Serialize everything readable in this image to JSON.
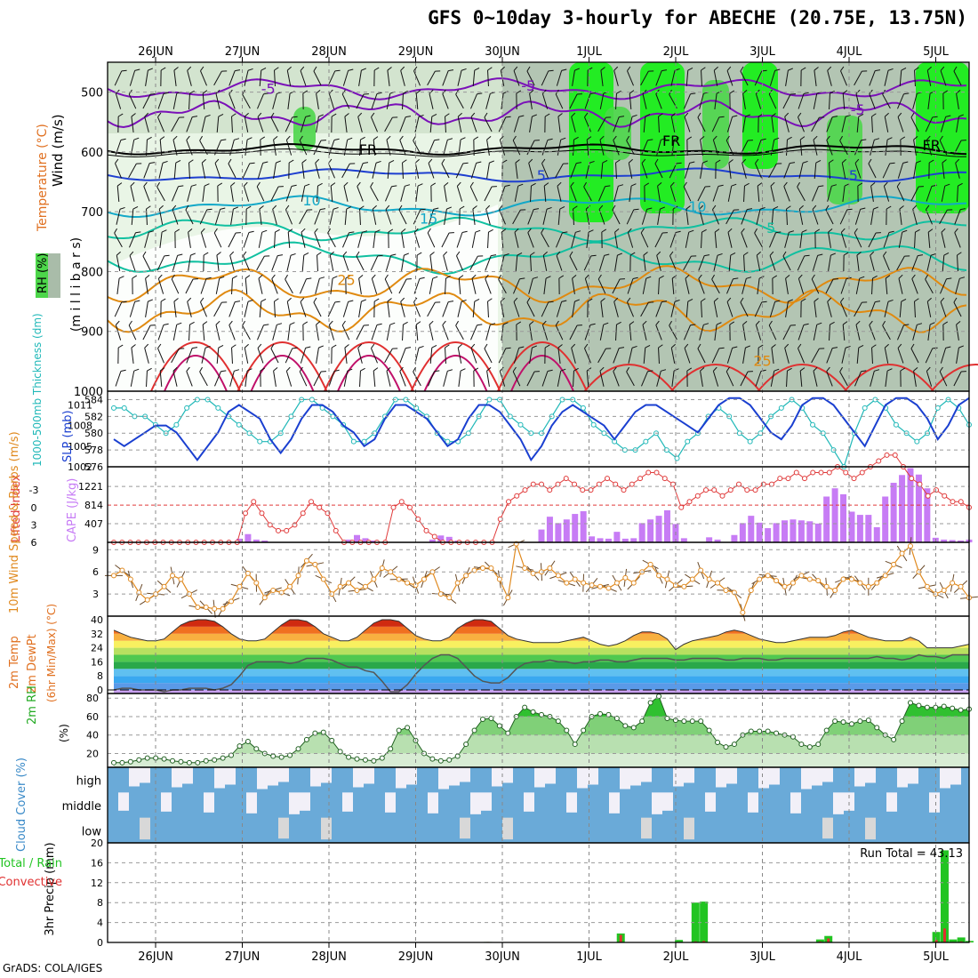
{
  "title": "GFS 0~10day 3-hourly for ABECHE (20.75E, 13.75N)",
  "credit": "GrADS: COLA/IGES",
  "dates": [
    "26JUN",
    "27JUN",
    "28JUN",
    "29JUN",
    "30JUN",
    "1JUL",
    "2JUL",
    "3JUL",
    "4JUL",
    "5JUL"
  ],
  "colors": {
    "rh_light": "#e9f5e6",
    "rh_mid": "#c4d8c0",
    "rh_dark": "#a9bca9",
    "rh_green": "#4dd64a",
    "rh_bright": "#13f013",
    "purple": "#7a10b8",
    "blue": "#1e3fd0",
    "cyan": "#12a8c8",
    "teal": "#10c0a0",
    "orange": "#e08a10",
    "red": "#e03030",
    "slp": "#1a3fd0",
    "thickness": "#20b8b8",
    "cape": "#c77cf5",
    "lifted": "#e03a3a",
    "wind": "#e08a20",
    "cloud": "#6aaad8",
    "cloud_clear": "#f2f0f8",
    "precip_total": "#22c422",
    "precip_conv": "#e03030"
  },
  "chart_data": [
    {
      "type": "heatmap",
      "ylabel": "Wind (m/s)",
      "ylabel2": "Temperature (°C)",
      "ylabel3": "(m i l l i b a r s)",
      "legend_label": "RH (%)",
      "yticks": [
        500,
        600,
        700,
        800,
        900,
        1000
      ],
      "ylim": [
        450,
        1000
      ],
      "contour_labels": [
        {
          "text": "-5",
          "x": 1.3,
          "y": 495,
          "color": "purple"
        },
        {
          "text": "-5",
          "x": 4.3,
          "y": 490,
          "color": "purple"
        },
        {
          "text": "-5",
          "x": 8.1,
          "y": 530,
          "color": "purple"
        },
        {
          "text": "FR",
          "x": 2.45,
          "y": 597,
          "color": "black"
        },
        {
          "text": "FR",
          "x": 5.95,
          "y": 582,
          "color": "black"
        },
        {
          "text": "FR",
          "x": 8.95,
          "y": 590,
          "color": "black"
        },
        {
          "text": "5",
          "x": 4.45,
          "y": 640,
          "color": "blue"
        },
        {
          "text": "5",
          "x": 8.05,
          "y": 640,
          "color": "blue"
        },
        {
          "text": "10",
          "x": 1.8,
          "y": 682,
          "color": "cyan"
        },
        {
          "text": "10",
          "x": 6.25,
          "y": 692,
          "color": "cyan"
        },
        {
          "text": "15",
          "x": 3.15,
          "y": 712,
          "color": "cyan"
        },
        {
          "text": "5",
          "x": 7.1,
          "y": 728,
          "color": "teal"
        },
        {
          "text": "25",
          "x": 2.2,
          "y": 815,
          "color": "orange"
        },
        {
          "text": "25",
          "x": 7.0,
          "y": 950,
          "color": "orange"
        }
      ]
    },
    {
      "type": "line",
      "ylabel": "SLP (mb)",
      "ylabel2": "1000-500mb Thickness (dm)",
      "yticks_left": [
        576,
        578,
        580,
        582,
        584
      ],
      "yticks_right": [
        1002,
        1005,
        1008,
        1011
      ],
      "ylim_left": [
        576,
        585
      ],
      "ylim_right": [
        1002,
        1013
      ],
      "series": [
        {
          "name": "SLP",
          "values": [
            1006,
            1005,
            1006,
            1007,
            1008,
            1008,
            1007,
            1005,
            1003,
            1005,
            1007,
            1010,
            1011,
            1010,
            1009,
            1006,
            1004,
            1006,
            1009,
            1011,
            1011,
            1010,
            1008,
            1007,
            1005,
            1006,
            1009,
            1011,
            1011,
            1010,
            1009,
            1007,
            1005,
            1006,
            1009,
            1011,
            1011,
            1010,
            1008,
            1006,
            1003,
            1005,
            1008,
            1010,
            1011,
            1010,
            1009,
            1008,
            1006,
            1008,
            1010,
            1011,
            1011,
            1010,
            1009,
            1008,
            1007,
            1009,
            1011,
            1012,
            1012,
            1011,
            1009,
            1007,
            1006,
            1008,
            1011,
            1012,
            1012,
            1011,
            1009,
            1007,
            1005,
            1008,
            1011,
            1012,
            1012,
            1011,
            1009,
            1006,
            1008,
            1011,
            1012
          ]
        },
        {
          "name": "Thickness",
          "values": [
            583,
            583,
            582,
            582,
            581,
            580,
            581,
            583,
            584,
            584,
            583,
            582,
            581,
            580,
            579,
            579,
            580,
            582,
            584,
            584,
            583,
            582,
            581,
            579,
            579,
            580,
            582,
            584,
            584,
            583,
            582,
            580,
            579,
            579,
            580,
            582,
            584,
            584,
            582,
            581,
            580,
            580,
            582,
            584,
            584,
            583,
            581,
            580,
            579,
            578,
            578,
            579,
            580,
            578,
            577,
            579,
            580,
            582,
            583,
            582,
            580,
            579,
            580,
            582,
            583,
            584,
            583,
            581,
            580,
            578,
            576,
            580,
            583,
            584,
            583,
            581,
            580,
            579,
            580,
            583,
            584,
            583,
            581
          ]
        }
      ]
    },
    {
      "type": "bar",
      "ylabel": "CAPE (J/kg)",
      "ylabel2": "Lifted Index",
      "yticks_right": [
        407,
        814,
        1221
      ],
      "yticks_left": [
        -3,
        0,
        3,
        6
      ],
      "ylim_cape": [
        0,
        1650
      ],
      "cape": [
        0,
        0,
        0,
        0,
        0,
        0,
        0,
        0,
        0,
        0,
        0,
        0,
        0,
        0,
        0,
        80,
        180,
        60,
        40,
        0,
        0,
        0,
        0,
        0,
        0,
        0,
        0,
        0,
        60,
        160,
        90,
        40,
        0,
        0,
        0,
        0,
        0,
        0,
        60,
        150,
        120,
        40,
        0,
        0,
        0,
        0,
        0,
        0,
        0,
        0,
        0,
        280,
        560,
        420,
        500,
        620,
        680,
        130,
        90,
        80,
        230,
        80,
        90,
        420,
        500,
        580,
        700,
        400,
        90,
        0,
        0,
        110,
        60,
        0,
        160,
        420,
        580,
        430,
        310,
        420,
        480,
        500,
        480,
        460,
        410,
        1000,
        1180,
        1050,
        670,
        600,
        600,
        330,
        1000,
        1300,
        1470,
        1620,
        1480,
        1180,
        100,
        60,
        50,
        40,
        60
      ],
      "lifted_index": [
        6,
        6,
        6,
        6,
        6,
        6,
        6,
        6,
        6,
        6,
        6,
        6,
        6,
        6,
        6,
        6,
        1,
        -1,
        1,
        3,
        4,
        4,
        3,
        1,
        -1,
        0,
        1,
        4,
        6,
        6,
        6,
        6,
        6,
        6,
        0,
        -1,
        0,
        2,
        4,
        5,
        6,
        6,
        6,
        6,
        6,
        6,
        6,
        2,
        -1,
        -2,
        -3,
        -4,
        -4,
        -3,
        -4,
        -5,
        -4,
        -3,
        -3,
        -4,
        -5,
        -4,
        -3,
        -4,
        -5,
        -6,
        -6,
        -5,
        -4,
        0,
        -1,
        -2,
        -3,
        -3,
        -2,
        -3,
        -4,
        -3,
        -3,
        -4,
        -4,
        -5,
        -5,
        -6,
        -5,
        -6,
        -6,
        -6,
        -7,
        -6,
        -5,
        -6,
        -7,
        -8,
        -9,
        -9,
        -7,
        -5,
        -4,
        -2,
        -3,
        -2,
        -1,
        -1,
        0
      ]
    },
    {
      "type": "line",
      "ylabel": "10m Wind Speed & Barbs (m/s)",
      "yticks": [
        3,
        6,
        9
      ],
      "ylim": [
        0,
        10
      ],
      "series": [
        {
          "name": "Wind Speed",
          "values": [
            5.5,
            6.2,
            5.0,
            3.2,
            2.2,
            3.0,
            4.0,
            5.5,
            5.0,
            3.0,
            1.2,
            1.2,
            1.0,
            1.0,
            2.0,
            4.0,
            5.8,
            4.5,
            2.5,
            3.5,
            3.2,
            4.0,
            5.5,
            7.5,
            7.0,
            5.0,
            3.0,
            4.0,
            4.5,
            3.5,
            4.0,
            5.0,
            6.5,
            6.0,
            5.0,
            4.5,
            4.2,
            5.0,
            6.0,
            3.0,
            2.5,
            4.5,
            5.5,
            6.2,
            6.5,
            6.5,
            5.0,
            2.5,
            9.8,
            6.5,
            5.8,
            6.0,
            6.5,
            5.5,
            4.5,
            5.0,
            4.5,
            4.2,
            4.0,
            3.8,
            4.5,
            5.2,
            4.5,
            6.0,
            7.0,
            5.5,
            5.0,
            4.2,
            4.0,
            5.0,
            6.2,
            5.0,
            4.5,
            3.5,
            3.2,
            0.5,
            3.5,
            5.0,
            5.5,
            4.8,
            4.0,
            4.5,
            5.5,
            5.0,
            4.8,
            4.0,
            3.5,
            5.0,
            5.0,
            4.5,
            4.0,
            4.5,
            5.5,
            7.0,
            8.5,
            9.5,
            6.0,
            4.0,
            3.0,
            3.5,
            4.5,
            4.0,
            2.5
          ]
        }
      ]
    },
    {
      "type": "area",
      "ylabel": "2m Temp",
      "ylabel2": "2m DewPt",
      "ylabel3": "(6hr Min/Max) (°C)",
      "yticks": [
        0,
        8,
        16,
        24,
        32,
        40
      ],
      "ylim": [
        -2,
        42
      ],
      "series": [
        {
          "name": "2m Temp",
          "values": [
            34,
            32,
            30,
            29,
            28,
            28,
            29,
            33,
            37,
            39,
            40,
            40,
            39,
            36,
            32,
            29,
            28,
            28,
            29,
            33,
            37,
            40,
            40,
            39,
            36,
            32,
            30,
            28,
            28,
            30,
            34,
            38,
            40,
            40,
            39,
            35,
            31,
            29,
            28,
            28,
            30,
            35,
            38,
            40,
            40,
            39,
            35,
            31,
            29,
            28,
            27,
            27,
            27,
            27,
            28,
            29,
            30,
            28,
            26,
            25,
            26,
            28,
            31,
            33,
            33,
            32,
            29,
            23,
            26,
            28,
            29,
            30,
            31,
            33,
            34,
            33,
            31,
            29,
            28,
            27,
            27,
            28,
            29,
            30,
            30,
            30,
            31,
            33,
            34,
            32,
            30,
            29,
            28,
            28,
            28,
            30,
            28,
            24,
            24,
            24,
            24,
            25,
            26
          ]
        },
        {
          "name": "2m DewPt",
          "values": [
            0,
            1,
            1,
            0,
            0,
            0,
            -1,
            0,
            0,
            1,
            1,
            1,
            0,
            1,
            3,
            8,
            14,
            16,
            16,
            16,
            16,
            15,
            16,
            18,
            18,
            18,
            17,
            15,
            13,
            13,
            11,
            10,
            5,
            -1,
            -1,
            3,
            9,
            14,
            18,
            20,
            20,
            18,
            13,
            8,
            5,
            4,
            4,
            7,
            12,
            15,
            16,
            16,
            17,
            16,
            16,
            15,
            16,
            16,
            17,
            17,
            16,
            16,
            17,
            18,
            18,
            18,
            18,
            17,
            17,
            18,
            18,
            18,
            18,
            17,
            17,
            18,
            18,
            18,
            17,
            17,
            18,
            18,
            18,
            18,
            18,
            18,
            18,
            18,
            18,
            18,
            18,
            19,
            18,
            18,
            17,
            18,
            20,
            19,
            19,
            18,
            20,
            20,
            20
          ]
        }
      ]
    },
    {
      "type": "area",
      "ylabel": "2m RH",
      "ylabel2": "(%)",
      "yticks": [
        20,
        40,
        60,
        80
      ],
      "ylim": [
        5,
        85
      ],
      "series": [
        {
          "name": "2m RH",
          "values": [
            10,
            10,
            11,
            13,
            15,
            15,
            14,
            12,
            11,
            10,
            10,
            12,
            13,
            15,
            18,
            28,
            33,
            25,
            20,
            17,
            16,
            18,
            25,
            35,
            42,
            43,
            34,
            22,
            16,
            14,
            13,
            12,
            15,
            25,
            45,
            48,
            34,
            20,
            14,
            12,
            13,
            17,
            30,
            45,
            57,
            58,
            50,
            42,
            60,
            70,
            65,
            62,
            60,
            55,
            45,
            30,
            45,
            60,
            63,
            62,
            58,
            50,
            48,
            55,
            75,
            82,
            58,
            56,
            55,
            55,
            55,
            45,
            32,
            27,
            30,
            40,
            44,
            44,
            44,
            42,
            40,
            38,
            30,
            27,
            30,
            45,
            55,
            54,
            52,
            55,
            56,
            48,
            40,
            35,
            55,
            75,
            72,
            70,
            70,
            71,
            69,
            67,
            68
          ]
        }
      ]
    },
    {
      "type": "heatmap",
      "ylabel": "Cloud Cover (%)",
      "rows": [
        "high",
        "middle",
        "low"
      ]
    },
    {
      "type": "bar",
      "ylabel": "3hr Precip (mm)",
      "legend": [
        "Total / Rain",
        "Convective"
      ],
      "annotation": "Run Total = 43.13",
      "yticks": [
        0,
        4,
        8,
        12,
        16,
        20
      ],
      "ylim": [
        0,
        20
      ],
      "total": [
        0,
        0,
        0,
        0,
        0,
        0,
        0,
        0,
        0,
        0,
        0,
        0,
        0,
        0,
        0,
        0,
        0,
        0,
        0,
        0,
        0,
        0,
        0,
        0,
        0,
        0,
        0,
        0,
        0,
        0,
        0,
        0,
        0,
        0,
        0,
        0,
        0,
        0,
        0,
        0,
        0,
        0,
        0,
        0,
        0,
        0.1,
        0,
        0,
        0,
        0,
        0,
        0,
        0,
        0,
        0,
        0,
        0,
        0,
        0.1,
        0,
        0,
        1.8,
        0,
        0,
        0,
        0,
        0,
        0,
        0.5,
        0,
        8.0,
        8.2,
        0,
        0,
        0,
        0,
        0,
        0,
        0,
        0,
        0,
        0,
        0,
        0,
        0,
        0.6,
        1.3,
        0,
        0,
        0,
        0,
        0,
        0,
        0,
        0,
        0,
        0,
        0,
        0,
        2.1,
        18.5,
        0.6,
        1.0,
        0.3
      ],
      "convective": [
        0,
        0,
        0,
        0,
        0,
        0,
        0,
        0,
        0,
        0,
        0,
        0,
        0,
        0,
        0,
        0,
        0,
        0,
        0,
        0,
        0,
        0,
        0,
        0,
        0,
        0,
        0,
        0,
        0,
        0,
        0,
        0,
        0,
        0,
        0,
        0,
        0,
        0,
        0,
        0,
        0,
        0,
        0,
        0,
        0,
        0.1,
        0,
        0,
        0,
        0,
        0,
        0,
        0,
        0,
        0,
        0,
        0,
        0,
        0,
        0,
        0,
        1.5,
        0,
        0,
        0,
        0,
        0,
        0,
        0.1,
        0,
        0.2,
        0.3,
        0,
        0,
        0,
        0,
        0,
        0,
        0,
        0,
        0,
        0,
        0,
        0,
        0,
        0.2,
        0.8,
        0,
        0,
        0,
        0,
        0,
        0,
        0,
        0,
        0,
        0,
        0,
        0,
        0.5,
        2.8,
        0.1,
        0.2,
        0.1
      ]
    }
  ]
}
